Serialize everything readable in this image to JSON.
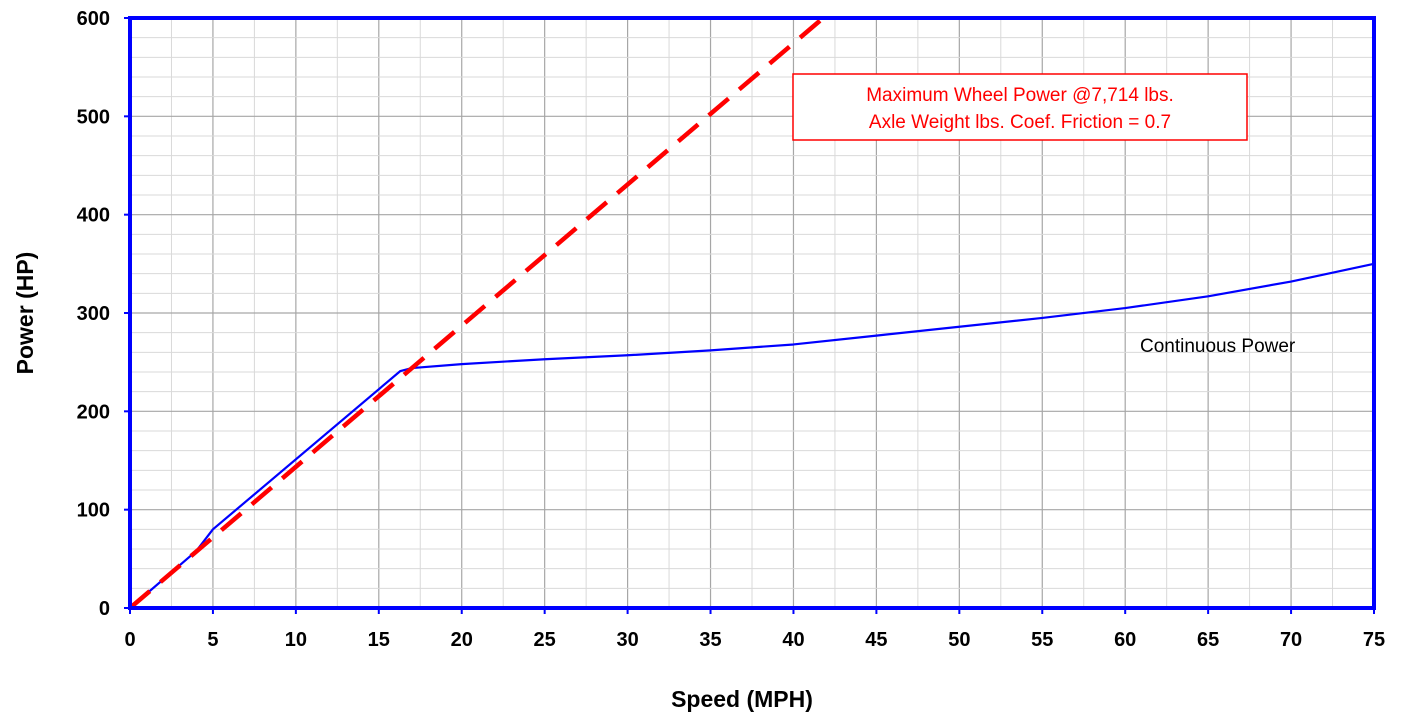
{
  "chart_data": {
    "type": "line",
    "title": "",
    "xlabel": "Speed  (MPH)",
    "ylabel": "Power  (HP)",
    "xlim": [
      0,
      75
    ],
    "ylim": [
      0,
      600
    ],
    "x_major_step": 5,
    "x_minor_step": 2.5,
    "y_major_step": 100,
    "y_minor_step": 20,
    "x_ticks": [
      "0",
      "5",
      "10",
      "15",
      "20",
      "25",
      "30",
      "35",
      "40",
      "45",
      "50",
      "55",
      "60",
      "65",
      "70",
      "75"
    ],
    "y_ticks": [
      "0",
      "100",
      "200",
      "300",
      "400",
      "500",
      "600"
    ],
    "grid": true,
    "colors": {
      "axis": "#0000ff",
      "continuous": "#0000ff",
      "wheel_power": "#ff0000",
      "grid": "#bfbfbf"
    },
    "series": [
      {
        "name": "Continuous Power",
        "style": "solid",
        "x": [
          0,
          4,
          5,
          16.3,
          17,
          20,
          25,
          30,
          35,
          40,
          45,
          50,
          55,
          60,
          65,
          70,
          75
        ],
        "y": [
          0,
          58,
          80,
          241,
          244,
          248,
          253,
          257,
          262,
          268,
          277,
          286,
          295,
          305,
          317,
          332,
          350
        ]
      },
      {
        "name": "Maximum Wheel Power",
        "style": "dashed",
        "x": [
          0,
          42
        ],
        "y": [
          0,
          603
        ]
      }
    ],
    "annotations": [
      {
        "lines": [
          "Maximum Wheel Power @7,714 lbs.",
          "Axle Weight lbs. Coef. Friction = 0.7"
        ],
        "color": "#ff0000",
        "boxed": true
      },
      {
        "text": "Continuous Power",
        "color": "#000000"
      }
    ]
  }
}
